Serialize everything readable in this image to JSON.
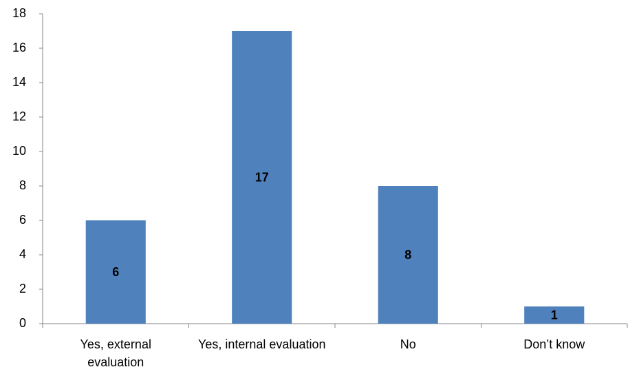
{
  "chart_data": {
    "type": "bar",
    "categories": [
      "Yes, external evaluation",
      "Yes, internal evaluation",
      "No",
      "Don’t know"
    ],
    "values": [
      6,
      17,
      8,
      1
    ],
    "color": "#4f81bd",
    "ylim": [
      0,
      18
    ],
    "yticks": [
      0,
      2,
      4,
      6,
      8,
      10,
      12,
      14,
      16,
      18
    ],
    "grid": false
  }
}
